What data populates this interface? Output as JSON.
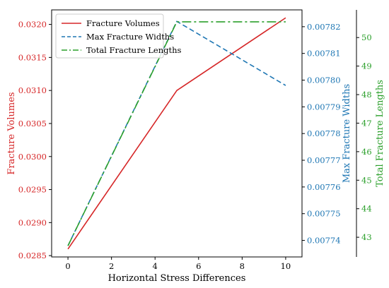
{
  "chart_data": {
    "type": "line",
    "x": [
      0,
      5,
      10
    ],
    "xlabel": "Horizontal Stress Differences",
    "xlim": [
      -0.75,
      10.75
    ],
    "xticks": [
      0,
      2,
      4,
      6,
      8,
      10
    ],
    "grid": false,
    "legend_position": "top-left",
    "series": [
      {
        "name": "Fracture Volumes",
        "axis": "left",
        "style": "solid",
        "color": "#d62728",
        "values": [
          0.0286,
          0.031,
          0.0321
        ]
      },
      {
        "name": "Max Fracture Widths",
        "axis": "right1",
        "style": "dashed",
        "color": "#1f77b4",
        "values": [
          0.007738,
          0.007822,
          0.007798
        ]
      },
      {
        "name": "Total Fracture Lengths",
        "axis": "right2",
        "style": "dashdot",
        "color": "#2ca02c",
        "values": [
          42.7,
          50.55,
          50.55
        ]
      }
    ],
    "axes": {
      "left": {
        "label": "Fracture Volumes",
        "color": "#d62728",
        "ylim": [
          0.02848,
          0.03222
        ],
        "ticks": [
          0.0285,
          0.029,
          0.0295,
          0.03,
          0.0305,
          0.031,
          0.0315,
          0.032
        ],
        "tick_labels": [
          "0.0285",
          "0.0290",
          "0.0295",
          "0.0300",
          "0.0305",
          "0.0310",
          "0.0315",
          "0.0320"
        ]
      },
      "right1": {
        "label": "Max Fracture Widths",
        "color": "#1f77b4",
        "ylim": [
          0.0077338,
          0.0078263
        ],
        "ticks": [
          0.00774,
          0.00775,
          0.00776,
          0.00777,
          0.00778,
          0.00779,
          0.0078,
          0.00781,
          0.00782
        ],
        "tick_labels": [
          "0.00774",
          "0.00775",
          "0.00776",
          "0.00777",
          "0.00778",
          "0.00779",
          "0.00780",
          "0.00781",
          "0.00782"
        ]
      },
      "right2": {
        "label": "Total Fracture Lengths",
        "color": "#2ca02c",
        "ylim": [
          42.31,
          50.97
        ],
        "ticks": [
          43,
          44,
          45,
          46,
          47,
          48,
          49,
          50
        ],
        "tick_labels": [
          "43",
          "44",
          "45",
          "46",
          "47",
          "48",
          "49",
          "50"
        ]
      }
    }
  }
}
